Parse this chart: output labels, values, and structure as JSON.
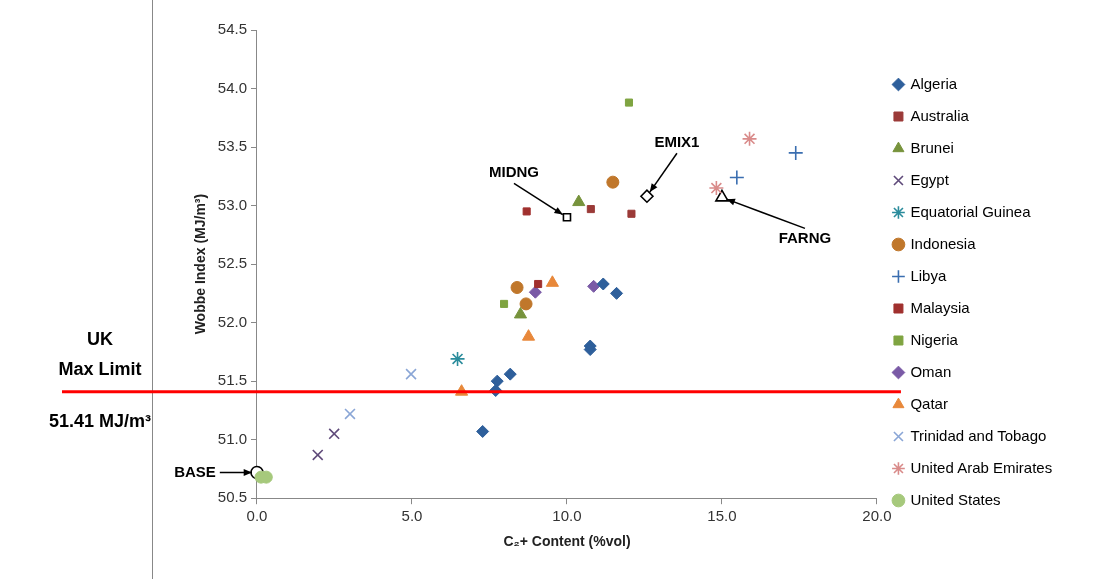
{
  "chart_data": {
    "type": "scatter",
    "xlabel": "C₂+ Content (%vol)",
    "ylabel": "Wobbe Index (MJ/m³)",
    "xlim": [
      0,
      20
    ],
    "xticks": [
      {
        "value": 0,
        "label": "0.0"
      },
      {
        "value": 5,
        "label": "5.0"
      },
      {
        "value": 10,
        "label": "10.0"
      },
      {
        "value": 15,
        "label": "15.0"
      },
      {
        "value": 20,
        "label": "20.0"
      }
    ],
    "ylim": [
      50.5,
      54.5
    ],
    "yticks": [
      {
        "value": 50.5,
        "label": "50.5"
      },
      {
        "value": 51,
        "label": "51.0"
      },
      {
        "value": 51.5,
        "label": "51.5"
      },
      {
        "value": 52,
        "label": "52.0"
      },
      {
        "value": 52.5,
        "label": "52.5"
      },
      {
        "value": 53,
        "label": "53.0"
      },
      {
        "value": 53.5,
        "label": "53.5"
      },
      {
        "value": 54,
        "label": "54.0"
      },
      {
        "value": 54.5,
        "label": "54.5"
      }
    ],
    "grid": false,
    "legend": "right",
    "series": [
      {
        "name": "Algeria",
        "color": "#2e5f9b",
        "marker": "diamond",
        "x": [
          7.28,
          7.7,
          7.75,
          8.17,
          10.75,
          10.75,
          11.17,
          11.6
        ],
        "values": [
          51.07,
          51.42,
          51.5,
          51.56,
          51.8,
          51.77,
          52.33,
          52.25
        ]
      },
      {
        "name": "Australia",
        "color": "#9b3a38",
        "marker": "square",
        "x": [
          10.77,
          12.08
        ],
        "values": [
          52.97,
          52.93
        ]
      },
      {
        "name": "Brunei",
        "color": "#77933c",
        "marker": "triangle",
        "x": [
          10.38,
          8.5
        ],
        "values": [
          53.03,
          52.07
        ]
      },
      {
        "name": "Egypt",
        "color": "#5f4a7a",
        "marker": "x",
        "x": [
          1.96,
          2.49
        ],
        "values": [
          50.87,
          51.05
        ]
      },
      {
        "name": "Equatorial Guinea",
        "color": "#2b8c9c",
        "marker": "cross",
        "x": [
          6.47
        ],
        "values": [
          51.69
        ]
      },
      {
        "name": "Indonesia",
        "color": "#c0772b",
        "marker": "circle",
        "x": [
          11.48,
          8.39,
          8.68
        ],
        "values": [
          53.2,
          52.3,
          52.16
        ]
      },
      {
        "name": "Libya",
        "color": "#3a6eb0",
        "marker": "plus",
        "x": [
          17.38,
          15.48
        ],
        "values": [
          53.45,
          53.24
        ]
      },
      {
        "name": "Malaysia",
        "color": "#a0302e",
        "marker": "square",
        "x": [
          8.7,
          9.07
        ],
        "values": [
          52.95,
          52.33
        ]
      },
      {
        "name": "Nigeria",
        "color": "#7fa441",
        "marker": "square",
        "x": [
          12.0,
          7.97
        ],
        "values": [
          53.88,
          52.16
        ]
      },
      {
        "name": "Oman",
        "color": "#7a5aa6",
        "marker": "diamond",
        "x": [
          8.98,
          10.86
        ],
        "values": [
          52.26,
          52.31
        ]
      },
      {
        "name": "Qatar",
        "color": "#e8883a",
        "marker": "triangle",
        "x": [
          6.6,
          8.76,
          9.53
        ],
        "values": [
          51.41,
          51.88,
          52.34
        ]
      },
      {
        "name": "Trinidad and Tobago",
        "color": "#8aa6d6",
        "marker": "x",
        "x": [
          3.0,
          4.97
        ],
        "values": [
          51.22,
          51.56
        ]
      },
      {
        "name": "United Arab Emirates",
        "color": "#d98b8a",
        "marker": "cross",
        "x": [
          15.89,
          14.82
        ],
        "values": [
          53.57,
          53.15
        ]
      },
      {
        "name": "United States",
        "color": "#a6c97c",
        "marker": "circle",
        "x": [
          0.13,
          0.3
        ],
        "values": [
          50.68,
          50.68
        ]
      },
      {
        "color": "#000000",
        "marker": [
          "circle",
          "square",
          "diamond",
          "triangle"
        ],
        "x": [
          0,
          10,
          12.58,
          15
        ],
        "values": [
          50.72,
          52.9,
          53.08,
          53.07
        ]
      }
    ],
    "annotations": [
      {
        "text": "BASE",
        "x": 0,
        "y": 50.72
      },
      {
        "text": "MIDNG",
        "x": 10,
        "y": 52.9
      },
      {
        "text": "EMIX1",
        "x": 12.58,
        "y": 53.08
      },
      {
        "text": "FARNG",
        "x": 15,
        "y": 53.07
      }
    ],
    "ref_lines": [
      {
        "axis": "y",
        "value": 51.41,
        "label": "UK\nMax Limit\n51.41 MJ/m³",
        "color": "#ff0000"
      }
    ]
  }
}
